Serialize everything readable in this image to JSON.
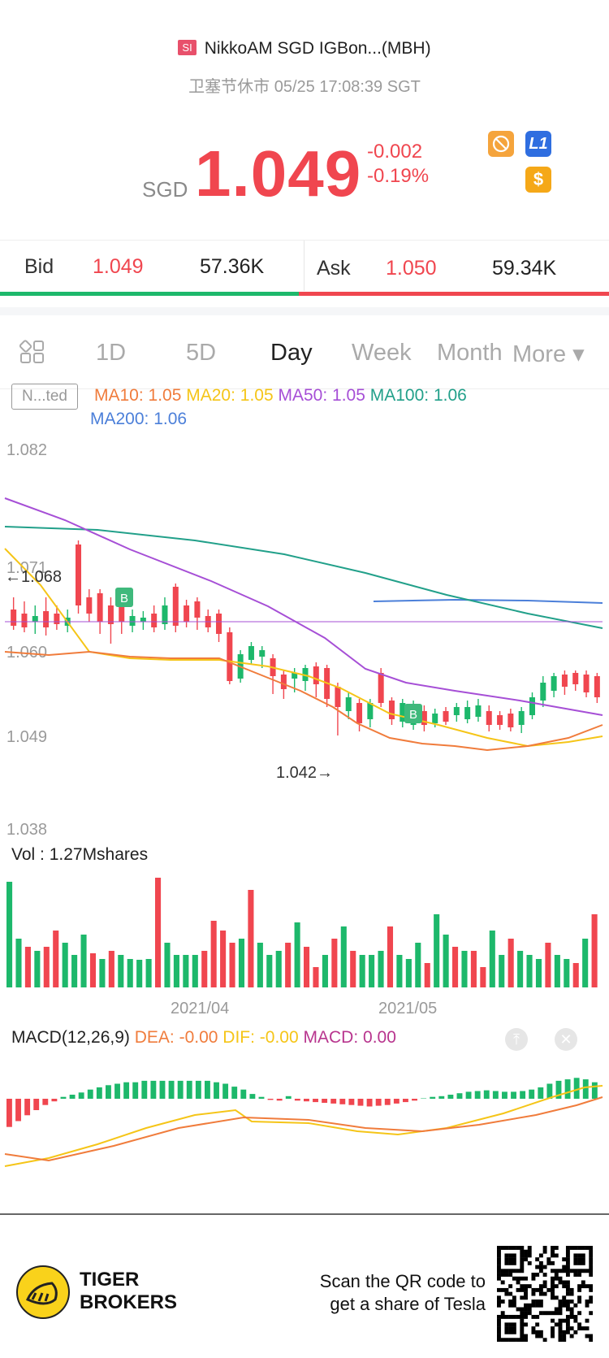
{
  "header": {
    "badge": "SI",
    "title": "NikkoAM SGD IGBon...(MBH)",
    "status": "卫塞节休市 05/25 17:08:39 SGT"
  },
  "quote": {
    "currency": "SGD",
    "price": "1.049",
    "change": "-0.002",
    "change_pct": "-0.19%",
    "icons": [
      "no-trading-icon",
      "level1-icon",
      "dollar-icon"
    ],
    "l1_label": "L1",
    "dollar_label": "$"
  },
  "bidask": {
    "bid_label": "Bid",
    "bid_price": "1.049",
    "bid_volume": "57.36K",
    "ask_label": "Ask",
    "ask_price": "1.050",
    "ask_volume": "59.34K"
  },
  "tabs": {
    "items": [
      "1D",
      "5D",
      "Day",
      "Week",
      "Month",
      "More ▾"
    ],
    "active": "Day"
  },
  "indicators": {
    "adjust_label": "N...ted",
    "ma10": "MA10: 1.05",
    "ma20": "MA20: 1.05",
    "ma50": "MA50: 1.05",
    "ma100": "MA100: 1.06",
    "ma200": "MA200: 1.06"
  },
  "price_axis": [
    "1.082",
    "1.071",
    "1.060",
    "1.049",
    "1.038"
  ],
  "annotations": {
    "high": "←1.068",
    "low": "1.042→",
    "buy_marker": "B"
  },
  "volume": {
    "label": "Vol : 1.27Mshares"
  },
  "date_axis": [
    "2021/04",
    "2021/05"
  ],
  "macd": {
    "title": "MACD(12,26,9)",
    "dea": "DEA: -0.00",
    "dif": "DIF: -0.00",
    "macd": "MACD: 0.00"
  },
  "footer": {
    "brand_line1": "TIGER",
    "brand_line2": "BROKERS",
    "promo_line1": "Scan the QR code to",
    "promo_line2": "get a share of Tesla"
  },
  "colors": {
    "up": "#f0464f",
    "down": "#1db86b",
    "ma10": "#f07c3c",
    "ma20": "#f5c518",
    "ma50": "#a64fd6",
    "ma100": "#22a08a",
    "ma200": "#4b7fd9",
    "macd_magenta": "#b8358e"
  }
}
